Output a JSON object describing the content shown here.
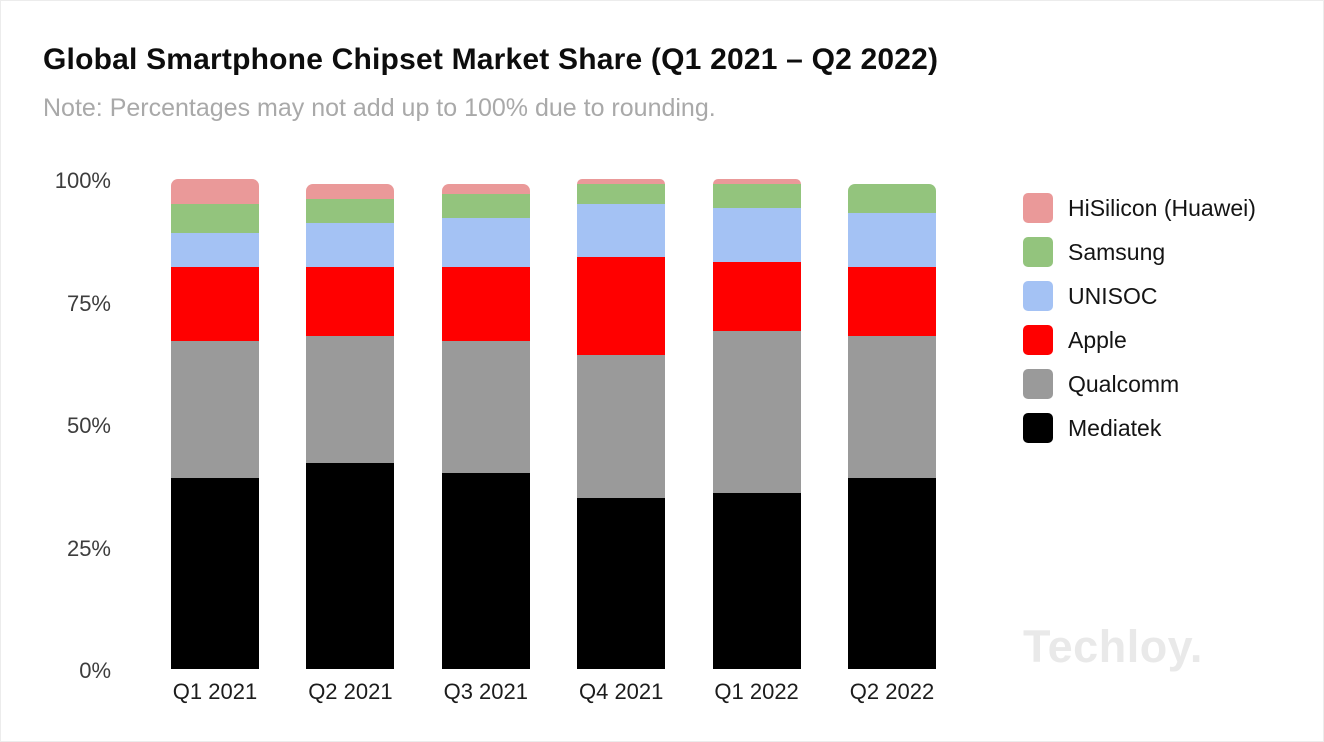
{
  "header": {
    "title": "Global Smartphone Chipset Market Share (Q1 2021 – Q2 2022)",
    "note": "Note: Percentages may not add up to 100% due to rounding."
  },
  "watermark": "Techloy.",
  "chart_data": {
    "type": "bar",
    "stacked": true,
    "title": "Global Smartphone Chipset Market Share (Q1 2021 – Q2 2022)",
    "categories": [
      "Q1 2021",
      "Q2 2021",
      "Q3 2021",
      "Q4 2021",
      "Q1 2022",
      "Q2 2022"
    ],
    "series": [
      {
        "name": "Mediatek",
        "color": "#000000",
        "values": [
          39,
          42,
          40,
          35,
          36,
          39
        ]
      },
      {
        "name": "Qualcomm",
        "color": "#9a9a9a",
        "values": [
          28,
          26,
          27,
          29,
          33,
          29
        ]
      },
      {
        "name": "Apple",
        "color": "#ff0000",
        "values": [
          15,
          14,
          15,
          20,
          14,
          14
        ]
      },
      {
        "name": "UNISOC",
        "color": "#a4c2f4",
        "values": [
          7,
          9,
          10,
          11,
          11,
          11
        ]
      },
      {
        "name": "Samsung",
        "color": "#93c47d",
        "values": [
          6,
          5,
          5,
          4,
          5,
          6
        ]
      },
      {
        "name": "HiSilicon (Huawei)",
        "color": "#ea9999",
        "values": [
          5,
          3,
          2,
          1,
          1,
          0
        ]
      }
    ],
    "legend_order_top_to_bottom": [
      "HiSilicon (Huawei)",
      "Samsung",
      "UNISOC",
      "Apple",
      "Qualcomm",
      "Mediatek"
    ],
    "yticks": [
      "100%",
      "75%",
      "50%",
      "25%",
      "0%"
    ],
    "ylim": [
      0,
      100
    ],
    "xlabel": "",
    "ylabel": "",
    "grid": false,
    "legend_position": "right",
    "units": "percent of market share"
  }
}
